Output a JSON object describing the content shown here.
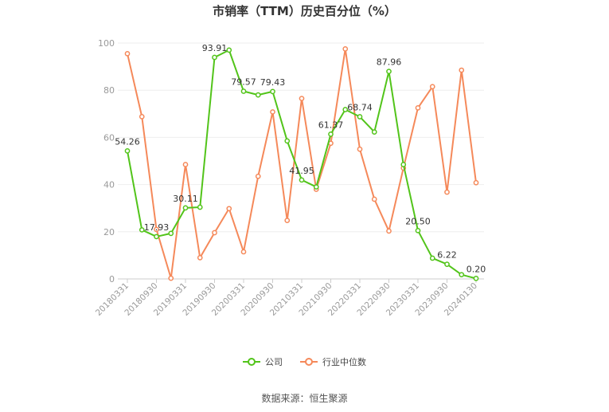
{
  "title": "市销率（TTM）历史百分位（%）",
  "source": "数据来源：恒生聚源",
  "legend": {
    "company_label": "公司",
    "industry_label": "行业中位数"
  },
  "colors": {
    "company": "#52c41a",
    "industry": "#f5895a",
    "axis": "#999999",
    "grid": "#eeeeee"
  },
  "chart_data": {
    "type": "line",
    "title": "市销率（TTM）历史百分位（%）",
    "xlabel": "",
    "ylabel": "",
    "ylim": [
      0,
      100
    ],
    "yticks": [
      0,
      20,
      40,
      60,
      80,
      100
    ],
    "grid": true,
    "legend_position": "bottom",
    "x": [
      "20180331",
      "20180630",
      "20180930",
      "20181231",
      "20190331",
      "20190630",
      "20190930",
      "20191231",
      "20200331",
      "20200630",
      "20200930",
      "20201231",
      "20210331",
      "20210630",
      "20210930",
      "20211231",
      "20220331",
      "20220630",
      "20220930",
      "20221231",
      "20230331",
      "20230630",
      "20230930",
      "20231231",
      "20240130"
    ],
    "xtick_labels": [
      "20180331",
      "20180930",
      "20190331",
      "20190930",
      "20200331",
      "20200930",
      "20210331",
      "20210930",
      "20220331",
      "20220930",
      "20230331",
      "20230930",
      "20240130"
    ],
    "xtick_indices": [
      0,
      2,
      4,
      6,
      8,
      10,
      12,
      14,
      16,
      18,
      20,
      22,
      24
    ],
    "series": [
      {
        "name": "公司",
        "values": [
          54.26,
          20.8,
          17.93,
          19.3,
          30.11,
          30.4,
          93.91,
          97.0,
          79.57,
          78.0,
          79.43,
          58.5,
          41.95,
          39.0,
          61.37,
          71.8,
          68.74,
          62.3,
          87.96,
          48.5,
          20.5,
          8.8,
          6.22,
          1.8,
          0.2
        ],
        "labels": {
          "0": "54.26",
          "2": "17.93",
          "4": "30.11",
          "6": "93.91",
          "8": "79.57",
          "10": "79.43",
          "12": "41.95",
          "14": "61.37",
          "16": "68.74",
          "18": "87.96",
          "20": "20.50",
          "22": "6.22",
          "24": "0.20"
        }
      },
      {
        "name": "行业中位数",
        "values": [
          95.5,
          68.8,
          21.0,
          0.3,
          48.5,
          9.0,
          19.6,
          29.8,
          11.5,
          43.5,
          70.8,
          24.8,
          76.5,
          38.0,
          57.5,
          97.5,
          55.0,
          33.8,
          20.3,
          47.0,
          72.5,
          81.5,
          36.8,
          88.5,
          40.8
        ]
      }
    ]
  }
}
